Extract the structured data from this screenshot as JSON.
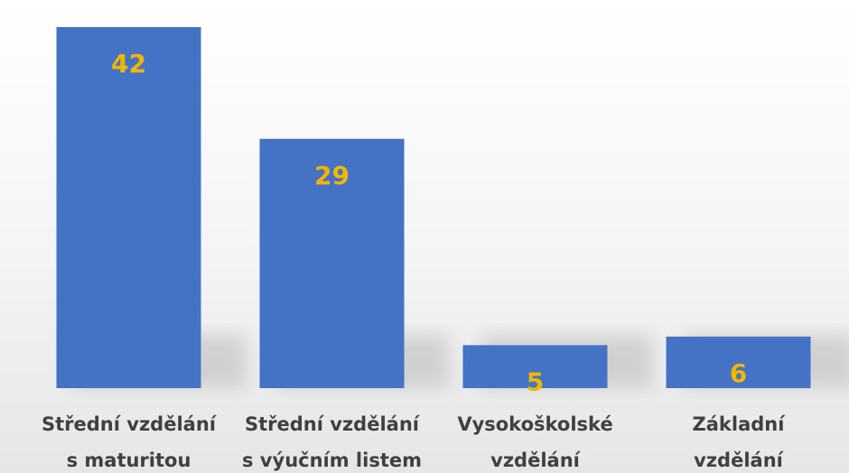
{
  "chart_data": {
    "type": "bar",
    "categories": [
      "Střední vzdělání\ns maturitou",
      "Střední vzdělání\ns výučním listem",
      "Vysokoškolské\nvzdělání",
      "Základní\nvzdělání"
    ],
    "values": [
      42,
      29,
      5,
      6
    ],
    "color": "#4472c4",
    "value_label_color": "#f2b600"
  }
}
